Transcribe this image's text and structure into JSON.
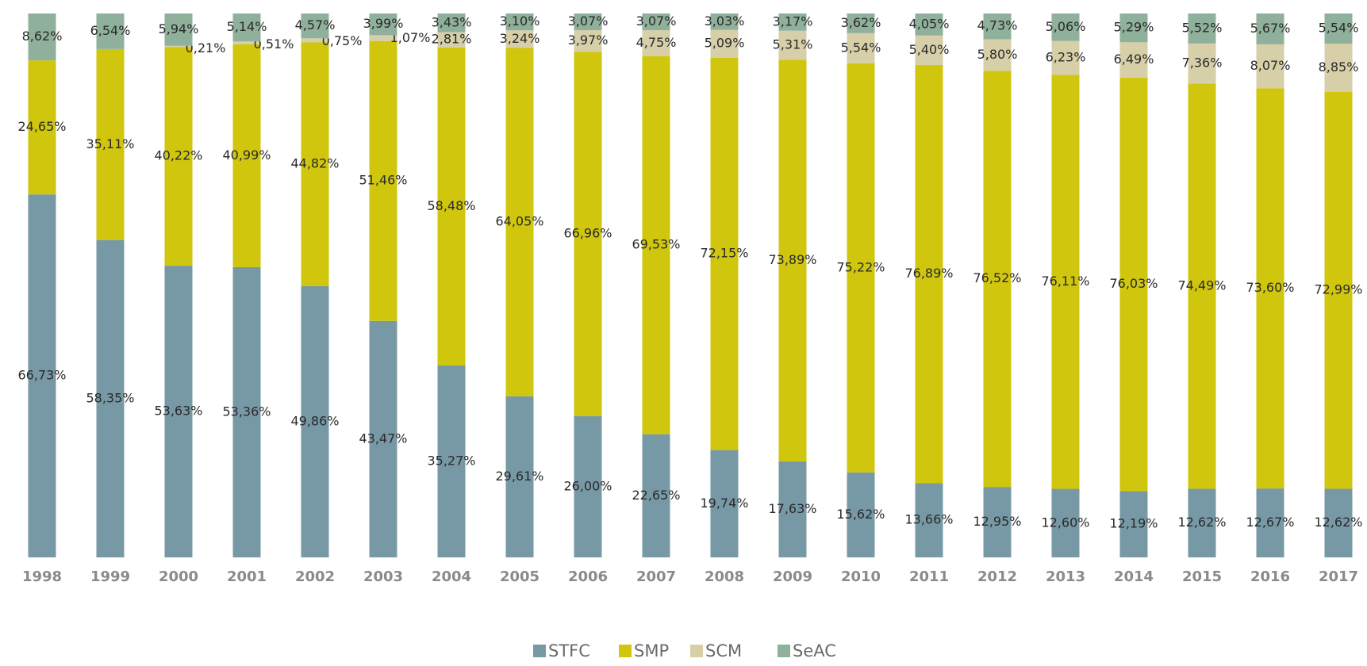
{
  "chart_data": {
    "type": "stacked_bar",
    "categories": [
      "1998",
      "1999",
      "2000",
      "2001",
      "2002",
      "2003",
      "2004",
      "2005",
      "2006",
      "2007",
      "2008",
      "2009",
      "2010",
      "2011",
      "2012",
      "2013",
      "2014",
      "2015",
      "2016",
      "2017"
    ],
    "series": [
      {
        "name": "STFC",
        "color": "#7799a5",
        "values": [
          66.73,
          58.35,
          53.63,
          53.36,
          49.86,
          43.47,
          35.27,
          29.61,
          26.0,
          22.65,
          19.74,
          17.63,
          15.62,
          13.66,
          12.95,
          12.6,
          12.19,
          12.62,
          12.67,
          12.62
        ],
        "value_labels": [
          "66,73%",
          "58,35%",
          "53,63%",
          "53,36%",
          "49,86%",
          "43,47%",
          "35,27%",
          "29,61%",
          "26,00%",
          "22,65%",
          "19,74%",
          "17,63%",
          "15,62%",
          "13,66%",
          "12,95%",
          "12,60%",
          "12,19%",
          "12,62%",
          "12,67%",
          "12,62%"
        ]
      },
      {
        "name": "SMP",
        "color": "#d0c60d",
        "values": [
          24.65,
          35.11,
          40.22,
          40.99,
          44.82,
          51.46,
          58.48,
          64.05,
          66.96,
          69.53,
          72.15,
          73.89,
          75.22,
          76.89,
          76.52,
          76.11,
          76.03,
          74.49,
          73.6,
          72.99
        ],
        "value_labels": [
          "24,65%",
          "35,11%",
          "40,22%",
          "40,99%",
          "44,82%",
          "51,46%",
          "58,48%",
          "64,05%",
          "66,96%",
          "69,53%",
          "72,15%",
          "73,89%",
          "75,22%",
          "76,89%",
          "76,52%",
          "76,11%",
          "76,03%",
          "74,49%",
          "73,60%",
          "72,99%"
        ]
      },
      {
        "name": "SCM",
        "color": "#d6cfa8",
        "values": [
          null,
          null,
          0.21,
          0.51,
          0.75,
          1.07,
          2.81,
          3.24,
          3.97,
          4.75,
          5.09,
          5.31,
          5.54,
          5.4,
          5.8,
          6.23,
          6.49,
          7.36,
          8.07,
          8.85
        ],
        "value_labels": [
          null,
          null,
          "0,21%",
          "0,51%",
          "0,75%",
          "1,07%",
          "2,81%",
          "3,24%",
          "3,97%",
          "4,75%",
          "5,09%",
          "5,31%",
          "5,54%",
          "5,40%",
          "5,80%",
          "6,23%",
          "6,49%",
          "7,36%",
          "8,07%",
          "8,85%"
        ]
      },
      {
        "name": "SeAC",
        "color": "#8fb09a",
        "values": [
          8.62,
          6.54,
          5.94,
          5.14,
          4.57,
          3.99,
          3.43,
          3.1,
          3.07,
          3.07,
          3.03,
          3.17,
          3.62,
          4.05,
          4.73,
          5.06,
          5.29,
          5.52,
          5.67,
          5.54
        ],
        "value_labels": [
          "8,62%",
          "6,54%",
          "5,94%",
          "5,14%",
          "4,57%",
          "3,99%",
          "3,43%",
          "3,10%",
          "3,07%",
          "3,07%",
          "3,03%",
          "3,17%",
          "3,62%",
          "4,05%",
          "4,73%",
          "5,06%",
          "5,29%",
          "5,52%",
          "5,67%",
          "5,54%"
        ]
      }
    ],
    "legend": "bottom"
  }
}
